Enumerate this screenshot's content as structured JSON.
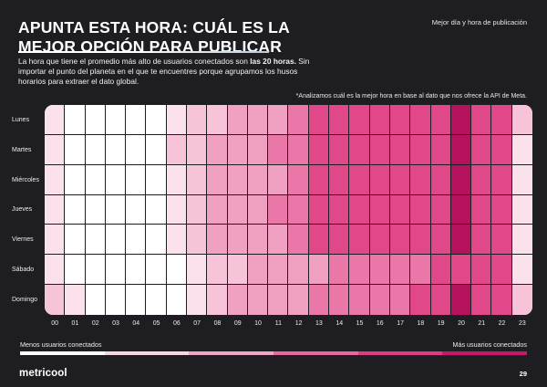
{
  "title": {
    "line1": "APUNTA ESTA HORA: CUÁL ES LA",
    "line2": "MEJOR OPCIÓN PARA PUBLICAR"
  },
  "top_right_label": "Mejor día y hora de publicación",
  "intro": {
    "part1": "La hora que tiene el promedio más alto de usuarios conectados son ",
    "bold": "las 20 horas.",
    "part2": " Sin importar el punto del planeta en el que te encuentres porque agrupamos los husos horarios para extraer el dato global."
  },
  "note": "*Analizamos cuál es la mejor hora en base al dato que nos ofrece la API de Meta.",
  "legend": {
    "low_label": "Menos usuarios conectados",
    "high_label": "Más usuarios conectados",
    "scale_colors": [
      "#ffffff",
      "#f7d7e5",
      "#f0a4c6",
      "#e9679f",
      "#e03a86",
      "#c9186c"
    ]
  },
  "brand": "metricool",
  "page_number": "29",
  "chart_data": {
    "type": "heatmap",
    "rows": [
      "Lunes",
      "Martes",
      "Miércoles",
      "Jueves",
      "Viernes",
      "Sábado",
      "Domingo"
    ],
    "columns": [
      "00",
      "01",
      "02",
      "03",
      "04",
      "05",
      "06",
      "07",
      "08",
      "09",
      "10",
      "11",
      "12",
      "13",
      "14",
      "15",
      "16",
      "17",
      "18",
      "19",
      "20",
      "21",
      "22",
      "23"
    ],
    "levels_description": "0 = least users, 6 = most users",
    "palette": [
      "#ffffff",
      "#fbe1ec",
      "#f6c3d9",
      "#f0a1c2",
      "#e978a8",
      "#e0488a",
      "#b5125e"
    ],
    "values": [
      [
        1,
        0,
        0,
        0,
        0,
        0,
        1,
        2,
        2,
        3,
        3,
        3,
        4,
        5,
        5,
        5,
        5,
        5,
        5,
        5,
        6,
        5,
        5,
        2
      ],
      [
        1,
        0,
        0,
        0,
        0,
        0,
        2,
        2,
        3,
        3,
        3,
        4,
        4,
        5,
        5,
        5,
        5,
        5,
        5,
        5,
        6,
        5,
        5,
        1
      ],
      [
        1,
        0,
        0,
        0,
        0,
        0,
        1,
        2,
        3,
        3,
        3,
        3,
        4,
        5,
        5,
        5,
        5,
        5,
        5,
        5,
        6,
        5,
        5,
        1
      ],
      [
        1,
        0,
        0,
        0,
        0,
        0,
        1,
        2,
        3,
        3,
        3,
        4,
        4,
        5,
        5,
        5,
        5,
        5,
        5,
        5,
        6,
        5,
        5,
        1
      ],
      [
        1,
        0,
        0,
        0,
        0,
        0,
        1,
        2,
        3,
        3,
        3,
        3,
        4,
        5,
        5,
        5,
        5,
        5,
        5,
        5,
        6,
        5,
        5,
        1
      ],
      [
        1,
        0,
        0,
        0,
        0,
        0,
        0,
        1,
        2,
        2,
        3,
        3,
        3,
        3,
        4,
        4,
        4,
        4,
        4,
        5,
        5,
        5,
        5,
        1
      ],
      [
        2,
        1,
        0,
        0,
        0,
        0,
        0,
        1,
        2,
        3,
        3,
        3,
        3,
        4,
        4,
        4,
        4,
        4,
        5,
        5,
        6,
        5,
        5,
        2
      ]
    ]
  }
}
